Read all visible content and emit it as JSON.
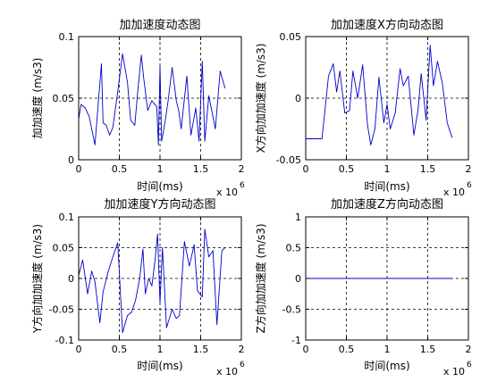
{
  "colors": {
    "line": "#0000cc",
    "axes": "#000000",
    "grid": "#000000",
    "background": "#ffffff"
  },
  "chart_data": [
    {
      "type": "line",
      "title": "加加速度动态图",
      "xlabel": "时间(ms)",
      "ylabel": "加加速度 (m/s3)",
      "x_exponent_label": "x 10",
      "x_exponent_power": "6",
      "xlim": [
        0,
        2000000
      ],
      "ylim": [
        0,
        0.1
      ],
      "xticks": [
        0,
        500000,
        1000000,
        1500000,
        2000000
      ],
      "xtick_labels": [
        "0",
        "0.5",
        "1",
        "1.5",
        "2"
      ],
      "yticks": [
        0,
        0.05,
        0.1
      ],
      "ytick_labels": [
        "0",
        "0.05",
        "0.1"
      ],
      "grid": true,
      "series": [
        {
          "x": [
            0,
            30000,
            80000,
            130000,
            200000,
            280000,
            300000,
            340000,
            380000,
            420000,
            480000,
            540000,
            600000,
            640000,
            690000,
            730000,
            770000,
            800000,
            850000,
            900000,
            960000,
            980000,
            1000000,
            1020000,
            1060000,
            1100000,
            1150000,
            1200000,
            1230000,
            1260000,
            1330000,
            1380000,
            1440000,
            1480000,
            1520000,
            1550000,
            1600000,
            1680000,
            1740000,
            1800000
          ],
          "y": [
            0.033,
            0.045,
            0.042,
            0.035,
            0.012,
            0.078,
            0.03,
            0.028,
            0.02,
            0.026,
            0.055,
            0.086,
            0.063,
            0.032,
            0.028,
            0.058,
            0.085,
            0.066,
            0.04,
            0.048,
            0.043,
            0.012,
            0.076,
            0.015,
            0.03,
            0.048,
            0.075,
            0.048,
            0.04,
            0.025,
            0.068,
            0.02,
            0.042,
            0.015,
            0.08,
            0.015,
            0.052,
            0.025,
            0.072,
            0.058
          ]
        }
      ]
    },
    {
      "type": "line",
      "title": "加加速度X方向动态图",
      "xlabel": "时间(ms)",
      "ylabel": "X方向加加速度 (m/s3)",
      "x_exponent_label": "x 10",
      "x_exponent_power": "6",
      "xlim": [
        0,
        2000000
      ],
      "ylim": [
        -0.05,
        0.05
      ],
      "xticks": [
        0,
        500000,
        1000000,
        1500000,
        2000000
      ],
      "xtick_labels": [
        "0",
        "0.5",
        "1",
        "1.5",
        "2"
      ],
      "yticks": [
        -0.05,
        0,
        0.05
      ],
      "ytick_labels": [
        "-0.05",
        "0",
        "0.05"
      ],
      "grid": true,
      "series": [
        {
          "x": [
            0,
            60000,
            120000,
            200000,
            280000,
            340000,
            380000,
            420000,
            480000,
            540000,
            580000,
            640000,
            700000,
            760000,
            800000,
            850000,
            900000,
            960000,
            1000000,
            1040000,
            1100000,
            1160000,
            1200000,
            1260000,
            1330000,
            1380000,
            1420000,
            1480000,
            1530000,
            1570000,
            1620000,
            1680000,
            1740000,
            1800000
          ],
          "y": [
            -0.033,
            -0.033,
            -0.033,
            -0.033,
            0.018,
            0.028,
            0.005,
            0.022,
            -0.012,
            -0.01,
            0.022,
            0.0,
            0.027,
            -0.022,
            -0.038,
            -0.025,
            0.017,
            -0.02,
            -0.005,
            -0.025,
            -0.012,
            0.024,
            0.01,
            0.018,
            -0.03,
            -0.01,
            0.02,
            -0.018,
            0.043,
            0.01,
            0.03,
            0.012,
            -0.02,
            -0.032
          ]
        }
      ]
    },
    {
      "type": "line",
      "title": "加加速度Y方向动态图",
      "xlabel": "时间(ms)",
      "ylabel": "Y方向加加速度 (m/s3)",
      "x_exponent_label": "x 10",
      "x_exponent_power": "6",
      "xlim": [
        0,
        2000000
      ],
      "ylim": [
        -0.1,
        0.1
      ],
      "xticks": [
        0,
        500000,
        1000000,
        1500000,
        2000000
      ],
      "xtick_labels": [
        "0",
        "0.5",
        "1",
        "1.5",
        "2"
      ],
      "yticks": [
        -0.1,
        -0.05,
        0,
        0.05,
        0.1
      ],
      "ytick_labels": [
        "-0.1",
        "-0.05",
        "0",
        "0.05",
        "0.1"
      ],
      "grid": true,
      "series": [
        {
          "x": [
            0,
            50000,
            110000,
            160000,
            200000,
            260000,
            300000,
            360000,
            420000,
            480000,
            540000,
            600000,
            650000,
            700000,
            750000,
            790000,
            820000,
            860000,
            900000,
            940000,
            970000,
            1000000,
            1030000,
            1080000,
            1150000,
            1200000,
            1240000,
            1300000,
            1360000,
            1420000,
            1460000,
            1520000,
            1550000,
            1600000,
            1650000,
            1700000,
            1760000,
            1800000
          ],
          "y": [
            0.005,
            0.03,
            -0.025,
            0.012,
            -0.005,
            -0.072,
            -0.022,
            0.01,
            0.035,
            0.058,
            -0.088,
            -0.06,
            -0.055,
            -0.035,
            0.0,
            0.048,
            -0.025,
            0.0,
            -0.012,
            0.03,
            0.072,
            -0.04,
            0.05,
            -0.08,
            -0.05,
            -0.065,
            -0.06,
            0.06,
            0.02,
            0.055,
            -0.02,
            -0.03,
            0.08,
            0.035,
            0.045,
            -0.075,
            0.045,
            0.05
          ]
        }
      ]
    },
    {
      "type": "line",
      "title": "加加速度Z方向动态图",
      "xlabel": "时间(ms)",
      "ylabel": "Z方向加加速度 (m/s3)",
      "x_exponent_label": "x 10",
      "x_exponent_power": "6",
      "xlim": [
        0,
        2000000
      ],
      "ylim": [
        -1,
        1
      ],
      "xticks": [
        0,
        500000,
        1000000,
        1500000,
        2000000
      ],
      "xtick_labels": [
        "0",
        "0.5",
        "1",
        "1.5",
        "2"
      ],
      "yticks": [
        -1,
        -0.5,
        0,
        0.5,
        1
      ],
      "ytick_labels": [
        "-1",
        "-0.5",
        "0",
        "0.5",
        "1"
      ],
      "grid": true,
      "series": [
        {
          "x": [
            0,
            1800000
          ],
          "y": [
            0,
            0
          ]
        }
      ]
    }
  ]
}
